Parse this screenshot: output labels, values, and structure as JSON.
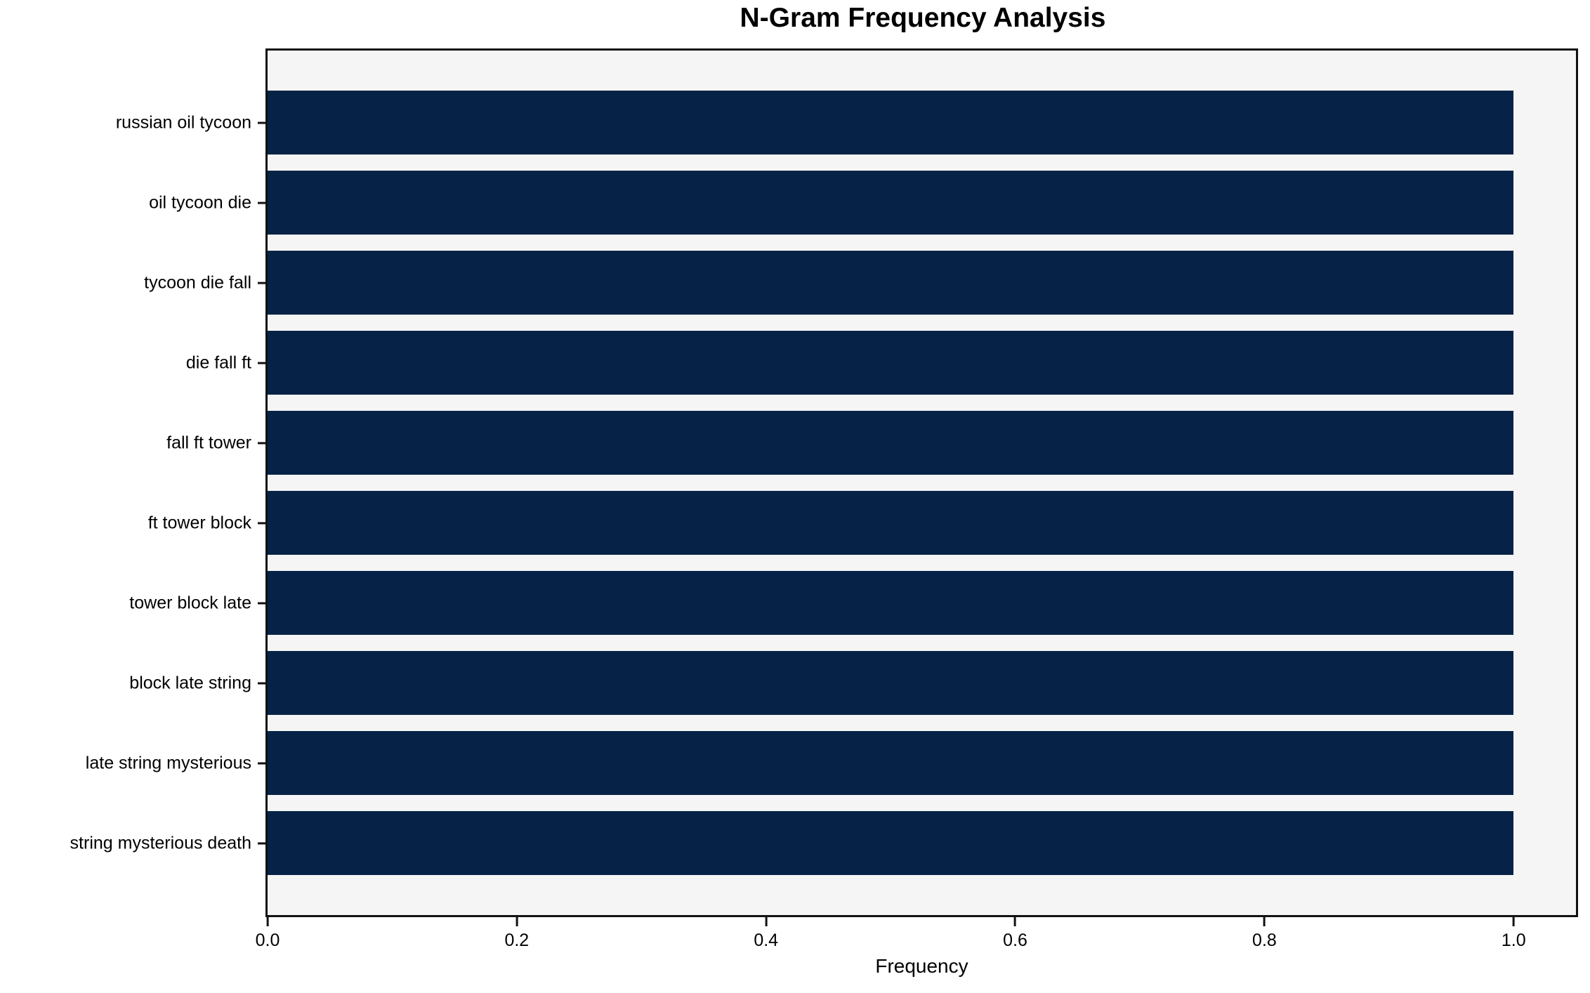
{
  "chart_data": {
    "type": "bar",
    "orientation": "horizontal",
    "title": "N-Gram Frequency Analysis",
    "xlabel": "Frequency",
    "ylabel": "",
    "categories": [
      "russian oil tycoon",
      "oil tycoon die",
      "tycoon die fall",
      "die fall ft",
      "fall ft tower",
      "ft tower block",
      "tower block late",
      "block late string",
      "late string mysterious",
      "string mysterious death"
    ],
    "values": [
      1.0,
      1.0,
      1.0,
      1.0,
      1.0,
      1.0,
      1.0,
      1.0,
      1.0,
      1.0
    ],
    "x_ticks": [
      0.0,
      0.2,
      0.4,
      0.6,
      0.8,
      1.0
    ],
    "x_tick_labels": [
      "0.0",
      "0.2",
      "0.4",
      "0.6",
      "0.8",
      "1.0"
    ],
    "xlim": [
      0,
      1.05
    ],
    "grid": false,
    "legend": null,
    "colors": {
      "bar": "#062347",
      "plot_background": "#f5f5f5",
      "figure_background": "#ffffff",
      "spine": "#111111",
      "text": "#000000"
    }
  }
}
